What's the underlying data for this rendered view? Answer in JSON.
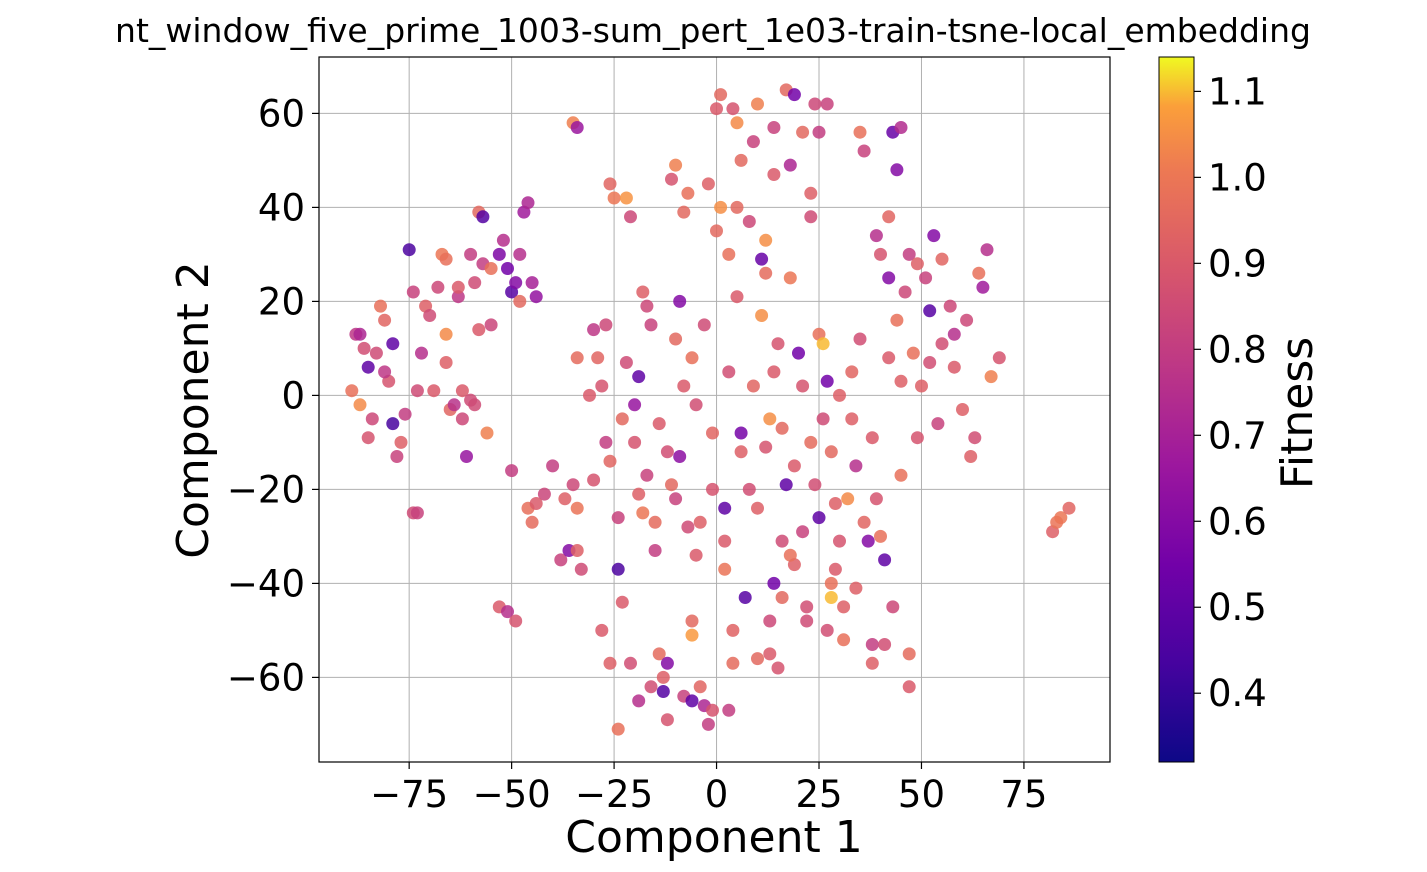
{
  "chart_data": {
    "type": "scatter",
    "title": "nt_window_five_prime_1003-sum_pert_1e03-train-tsne-local_embedding",
    "xlabel": "Component 1",
    "ylabel": "Component 2",
    "xlim": [
      -97,
      96
    ],
    "ylim": [
      -78,
      72
    ],
    "xticks": [
      -75,
      -50,
      -25,
      0,
      25,
      50,
      75
    ],
    "xtick_labels": [
      "−75",
      "−50",
      "−25",
      "0",
      "25",
      "50",
      "75"
    ],
    "yticks": [
      -60,
      -40,
      -20,
      0,
      20,
      40,
      60
    ],
    "ytick_labels": [
      "−60",
      "−40",
      "−20",
      "0",
      "20",
      "40",
      "60"
    ],
    "grid": true,
    "colormap": "plasma",
    "colorbar": {
      "label": "Fitness",
      "range": [
        0.32,
        1.14
      ],
      "ticks": [
        0.4,
        0.5,
        0.6,
        0.7,
        0.8,
        0.9,
        1.0,
        1.1
      ],
      "tick_labels": [
        "0.4",
        "0.5",
        "0.6",
        "0.7",
        "0.8",
        "0.9",
        "1.0",
        "1.1"
      ]
    },
    "points": [
      [
        -89,
        1,
        0.98
      ],
      [
        -88,
        13,
        0.78
      ],
      [
        -87,
        -2,
        1.04
      ],
      [
        -86,
        10,
        0.86
      ],
      [
        -85,
        6,
        0.5
      ],
      [
        -84,
        -5,
        0.84
      ],
      [
        -82,
        19,
        0.98
      ],
      [
        -81,
        16,
        0.94
      ],
      [
        -80,
        3,
        0.88
      ],
      [
        -79,
        11,
        0.5
      ],
      [
        -79,
        -6,
        0.44
      ],
      [
        -78,
        -13,
        0.82
      ],
      [
        -76,
        -4,
        0.8
      ],
      [
        -75,
        31,
        0.45
      ],
      [
        -74,
        22,
        0.82
      ],
      [
        -74,
        -25,
        0.85
      ],
      [
        -73,
        1,
        0.85
      ],
      [
        -72,
        9,
        0.75
      ],
      [
        -71,
        19,
        0.92
      ],
      [
        -70,
        17,
        0.85
      ],
      [
        -68,
        23,
        0.84
      ],
      [
        -67,
        30,
        1.0
      ],
      [
        -66,
        29,
        0.98
      ],
      [
        -66,
        13,
        1.04
      ],
      [
        -66,
        7,
        0.92
      ],
      [
        -65,
        -3,
        0.94
      ],
      [
        -63,
        21,
        0.78
      ],
      [
        -62,
        1,
        0.9
      ],
      [
        -61,
        -13,
        0.65
      ],
      [
        -60,
        30,
        0.8
      ],
      [
        -59,
        -2,
        0.85
      ],
      [
        -58,
        39,
        0.95
      ],
      [
        -57,
        38,
        0.47
      ],
      [
        -57,
        28,
        0.8
      ],
      [
        -56,
        -8,
        1.02
      ],
      [
        -55,
        15,
        0.83
      ],
      [
        -53,
        30,
        0.58
      ],
      [
        -52,
        33,
        0.75
      ],
      [
        -51,
        27,
        0.55
      ],
      [
        -50,
        22,
        0.48
      ],
      [
        -49,
        24,
        0.6
      ],
      [
        -48,
        20,
        0.95
      ],
      [
        -47,
        39,
        0.68
      ],
      [
        -46,
        41,
        0.72
      ],
      [
        -45,
        24,
        0.7
      ],
      [
        -44,
        21,
        0.64
      ],
      [
        -53,
        -45,
        0.9
      ],
      [
        -51,
        -46,
        0.75
      ],
      [
        -49,
        -48,
        0.88
      ],
      [
        -50,
        -16,
        0.8
      ],
      [
        -46,
        -24,
        0.97
      ],
      [
        -42,
        -21,
        0.83
      ],
      [
        -38,
        -35,
        0.82
      ],
      [
        -36,
        -33,
        0.6
      ],
      [
        -35,
        -19,
        0.84
      ],
      [
        -34,
        -24,
        0.99
      ],
      [
        -34,
        -33,
        0.92
      ],
      [
        -33,
        -37,
        0.85
      ],
      [
        -35,
        58,
        1.02
      ],
      [
        -34,
        57,
        0.66
      ],
      [
        -34,
        8,
        0.96
      ],
      [
        -30,
        14,
        0.78
      ],
      [
        -29,
        8,
        0.94
      ],
      [
        -28,
        2,
        0.88
      ],
      [
        -27,
        -10,
        0.8
      ],
      [
        -26,
        -14,
        0.94
      ],
      [
        -26,
        45,
        0.94
      ],
      [
        -25,
        42,
        1.0
      ],
      [
        -24,
        -26,
        0.82
      ],
      [
        -24,
        -37,
        0.45
      ],
      [
        -23,
        -44,
        0.9
      ],
      [
        -22,
        42,
        1.06
      ],
      [
        -21,
        38,
        0.84
      ],
      [
        -21,
        -57,
        0.86
      ],
      [
        -20,
        -2,
        0.65
      ],
      [
        -19,
        4,
        0.5
      ],
      [
        -19,
        -21,
        0.92
      ],
      [
        -18,
        -25,
        1.0
      ],
      [
        -18,
        22,
        0.92
      ],
      [
        -17,
        19,
        0.84
      ],
      [
        -16,
        15,
        0.82
      ],
      [
        -15,
        -27,
        0.96
      ],
      [
        -15,
        -33,
        0.8
      ],
      [
        -14,
        -55,
        0.96
      ],
      [
        -13,
        -60,
        0.92
      ],
      [
        -12,
        -57,
        0.6
      ],
      [
        -12,
        -69,
        0.88
      ],
      [
        -11,
        46,
        0.88
      ],
      [
        -10,
        49,
        1.02
      ],
      [
        -10,
        -22,
        0.82
      ],
      [
        -10,
        12,
        0.95
      ],
      [
        -9,
        20,
        0.6
      ],
      [
        -9,
        -13,
        0.62
      ],
      [
        -8,
        39,
        0.95
      ],
      [
        -7,
        43,
        0.98
      ],
      [
        -6,
        -48,
        0.95
      ],
      [
        -6,
        -51,
        1.07
      ],
      [
        -6,
        8,
        0.98
      ],
      [
        -5,
        -2,
        0.86
      ],
      [
        -4,
        -27,
        0.92
      ],
      [
        -4,
        -62,
        0.94
      ],
      [
        -3,
        -66,
        0.72
      ],
      [
        -2,
        45,
        0.92
      ],
      [
        -1,
        -8,
        0.94
      ],
      [
        0,
        35,
        0.95
      ],
      [
        0,
        61,
        0.9
      ],
      [
        1,
        64,
        0.95
      ],
      [
        1,
        40,
        1.05
      ],
      [
        2,
        -31,
        0.9
      ],
      [
        2,
        -37,
        0.99
      ],
      [
        3,
        30,
        0.98
      ],
      [
        4,
        61,
        0.88
      ],
      [
        4,
        -57,
        0.96
      ],
      [
        5,
        58,
        1.04
      ],
      [
        5,
        21,
        0.9
      ],
      [
        5,
        40,
        0.95
      ],
      [
        6,
        -8,
        0.56
      ],
      [
        6,
        50,
        0.95
      ],
      [
        7,
        -43,
        0.48
      ],
      [
        8,
        37,
        0.84
      ],
      [
        9,
        54,
        0.82
      ],
      [
        10,
        62,
        1.02
      ],
      [
        11,
        29,
        0.52
      ],
      [
        11,
        17,
        1.05
      ],
      [
        12,
        33,
        1.05
      ],
      [
        12,
        26,
        0.96
      ],
      [
        13,
        -5,
        1.05
      ],
      [
        13,
        -55,
        0.9
      ],
      [
        13,
        -48,
        0.84
      ],
      [
        14,
        57,
        0.82
      ],
      [
        14,
        -40,
        0.55
      ],
      [
        14,
        47,
        0.9
      ],
      [
        15,
        11,
        0.88
      ],
      [
        16,
        -31,
        0.85
      ],
      [
        16,
        -43,
        0.95
      ],
      [
        17,
        65,
        0.95
      ],
      [
        18,
        49,
        0.72
      ],
      [
        18,
        25,
        1.0
      ],
      [
        19,
        64,
        0.55
      ],
      [
        19,
        -15,
        0.9
      ],
      [
        20,
        9,
        0.55
      ],
      [
        21,
        56,
        0.95
      ],
      [
        21,
        -29,
        0.82
      ],
      [
        22,
        -45,
        0.86
      ],
      [
        23,
        38,
        0.85
      ],
      [
        23,
        43,
        0.92
      ],
      [
        24,
        62,
        0.84
      ],
      [
        25,
        56,
        0.8
      ],
      [
        25,
        13,
        0.98
      ],
      [
        25,
        -26,
        0.5
      ],
      [
        26,
        11,
        1.1
      ],
      [
        27,
        62,
        0.82
      ],
      [
        27,
        3,
        0.55
      ],
      [
        28,
        -40,
        0.98
      ],
      [
        28,
        -12,
        0.95
      ],
      [
        28,
        -43,
        1.1
      ],
      [
        30,
        0,
        0.92
      ],
      [
        31,
        -45,
        0.92
      ],
      [
        32,
        -22,
        1.04
      ],
      [
        33,
        5,
        0.94
      ],
      [
        34,
        -15,
        0.75
      ],
      [
        35,
        56,
        0.98
      ],
      [
        36,
        52,
        0.82
      ],
      [
        37,
        -31,
        0.6
      ],
      [
        38,
        -53,
        0.8
      ],
      [
        39,
        34,
        0.75
      ],
      [
        40,
        -30,
        0.98
      ],
      [
        40,
        30,
        0.88
      ],
      [
        41,
        -35,
        0.5
      ],
      [
        42,
        25,
        0.6
      ],
      [
        42,
        8,
        0.9
      ],
      [
        43,
        56,
        0.52
      ],
      [
        44,
        48,
        0.6
      ],
      [
        45,
        -17,
        0.98
      ],
      [
        45,
        57,
        0.74
      ],
      [
        46,
        22,
        0.84
      ],
      [
        47,
        -55,
        0.96
      ],
      [
        48,
        9,
        0.98
      ],
      [
        49,
        -9,
        0.88
      ],
      [
        50,
        2,
        0.92
      ],
      [
        51,
        25,
        0.82
      ],
      [
        52,
        18,
        0.48
      ],
      [
        53,
        34,
        0.6
      ],
      [
        54,
        -6,
        0.82
      ],
      [
        55,
        11,
        0.86
      ],
      [
        57,
        19,
        0.84
      ],
      [
        58,
        13,
        0.75
      ],
      [
        60,
        -3,
        0.92
      ],
      [
        62,
        -13,
        0.92
      ],
      [
        64,
        26,
        0.98
      ],
      [
        65,
        23,
        0.68
      ],
      [
        66,
        31,
        0.75
      ],
      [
        67,
        4,
        1.02
      ],
      [
        69,
        8,
        0.88
      ],
      [
        82,
        -29,
        0.92
      ],
      [
        83,
        -27,
        0.99
      ],
      [
        84,
        -26,
        1.0
      ],
      [
        86,
        -24,
        0.94
      ],
      [
        -87,
        13,
        0.72
      ],
      [
        -83,
        9,
        0.85
      ],
      [
        -81,
        5,
        0.78
      ],
      [
        -77,
        -10,
        0.92
      ],
      [
        -69,
        1,
        0.9
      ],
      [
        -64,
        -2,
        0.76
      ],
      [
        -62,
        -5,
        0.84
      ],
      [
        -58,
        14,
        0.9
      ],
      [
        -55,
        27,
        0.98
      ],
      [
        -48,
        30,
        0.75
      ],
      [
        -40,
        -15,
        0.8
      ],
      [
        -37,
        -22,
        0.92
      ],
      [
        -31,
        0,
        0.9
      ],
      [
        -30,
        -18,
        0.88
      ],
      [
        -28,
        -50,
        0.9
      ],
      [
        -27,
        15,
        0.84
      ],
      [
        -23,
        -5,
        0.95
      ],
      [
        -22,
        7,
        0.85
      ],
      [
        -20,
        -10,
        0.88
      ],
      [
        -17,
        -17,
        0.82
      ],
      [
        -14,
        -6,
        0.9
      ],
      [
        -12,
        -12,
        0.86
      ],
      [
        -11,
        -19,
        0.95
      ],
      [
        -8,
        2,
        0.9
      ],
      [
        -7,
        -28,
        0.85
      ],
      [
        -5,
        -34,
        0.9
      ],
      [
        -3,
        15,
        0.85
      ],
      [
        -1,
        -20,
        0.88
      ],
      [
        2,
        -24,
        0.5
      ],
      [
        3,
        5,
        0.86
      ],
      [
        6,
        -12,
        0.92
      ],
      [
        8,
        -20,
        0.86
      ],
      [
        9,
        2,
        0.94
      ],
      [
        10,
        -24,
        0.92
      ],
      [
        12,
        -11,
        0.88
      ],
      [
        14,
        5,
        0.9
      ],
      [
        16,
        -7,
        0.95
      ],
      [
        17,
        -19,
        0.5
      ],
      [
        19,
        -36,
        0.92
      ],
      [
        21,
        2,
        0.88
      ],
      [
        23,
        -10,
        0.96
      ],
      [
        24,
        -19,
        0.86
      ],
      [
        26,
        -5,
        0.85
      ],
      [
        29,
        -23,
        0.92
      ],
      [
        30,
        -31,
        0.88
      ],
      [
        33,
        -5,
        0.92
      ],
      [
        35,
        12,
        0.86
      ],
      [
        36,
        -27,
        0.94
      ],
      [
        38,
        -9,
        0.9
      ],
      [
        39,
        -22,
        0.88
      ],
      [
        42,
        38,
        0.94
      ],
      [
        44,
        16,
        0.98
      ],
      [
        45,
        3,
        0.92
      ],
      [
        47,
        30,
        0.8
      ],
      [
        49,
        28,
        0.92
      ],
      [
        52,
        7,
        0.86
      ],
      [
        55,
        29,
        0.94
      ],
      [
        58,
        6,
        0.9
      ],
      [
        61,
        16,
        0.84
      ],
      [
        63,
        -9,
        0.86
      ],
      [
        -85,
        -9,
        0.88
      ],
      [
        -73,
        -25,
        0.82
      ],
      [
        -60,
        -1,
        0.85
      ],
      [
        -44,
        -23,
        0.9
      ],
      [
        -26,
        -57,
        0.92
      ],
      [
        -16,
        -62,
        0.86
      ],
      [
        -8,
        -64,
        0.82
      ],
      [
        -1,
        -67,
        0.88
      ],
      [
        3,
        -67,
        0.8
      ],
      [
        10,
        -56,
        0.95
      ],
      [
        15,
        -58,
        0.88
      ],
      [
        27,
        -50,
        0.86
      ],
      [
        31,
        -52,
        0.98
      ],
      [
        38,
        -57,
        0.92
      ],
      [
        41,
        -53,
        0.86
      ],
      [
        -63,
        23,
        0.9
      ],
      [
        -59,
        24,
        0.85
      ],
      [
        -45,
        -27,
        0.96
      ],
      [
        -24,
        -71,
        0.98
      ],
      [
        -19,
        -65,
        0.75
      ],
      [
        -13,
        -63,
        0.47
      ],
      [
        -6,
        -65,
        0.5
      ],
      [
        -2,
        -70,
        0.8
      ],
      [
        4,
        -50,
        0.93
      ],
      [
        18,
        -34,
        0.98
      ],
      [
        22,
        -48,
        0.85
      ],
      [
        29,
        -37,
        0.9
      ],
      [
        34,
        -41,
        0.92
      ],
      [
        43,
        -45,
        0.84
      ],
      [
        47,
        -62,
        0.9
      ]
    ]
  }
}
